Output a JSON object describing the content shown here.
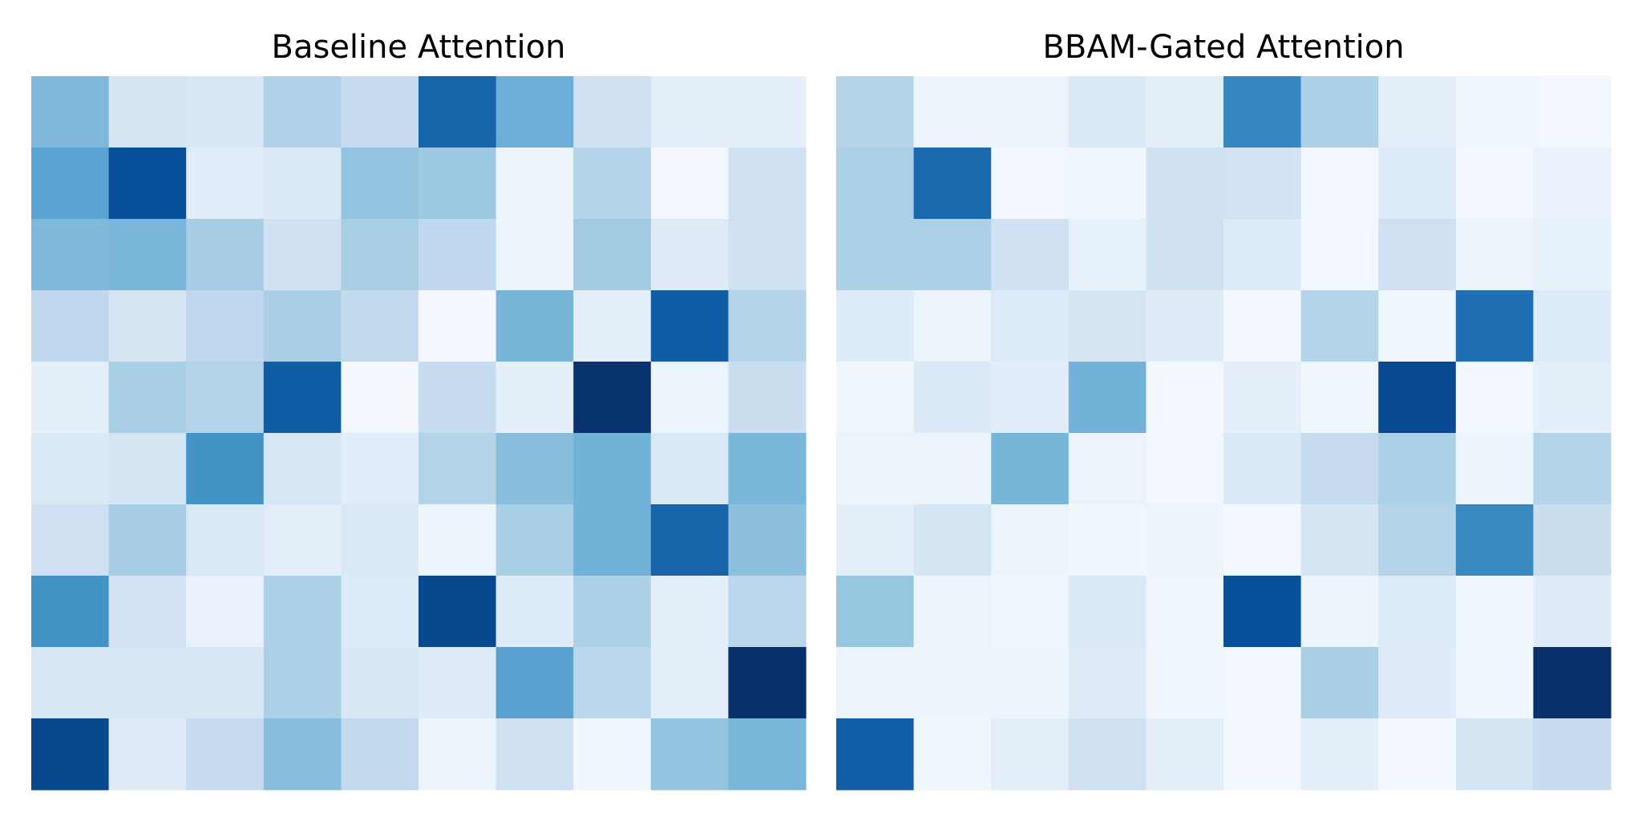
{
  "chart_data": [
    {
      "type": "heatmap",
      "title": "Baseline Attention",
      "xlabel": "",
      "ylabel": "",
      "colormap": "Blues",
      "vmin": 0,
      "vmax": 1,
      "grid": false,
      "values": [
        [
          0.45,
          0.18,
          0.16,
          0.32,
          0.24,
          0.8,
          0.5,
          0.21,
          0.1,
          0.09
        ],
        [
          0.55,
          0.88,
          0.11,
          0.14,
          0.4,
          0.38,
          0.06,
          0.3,
          0.03,
          0.2
        ],
        [
          0.45,
          0.46,
          0.35,
          0.2,
          0.34,
          0.27,
          0.05,
          0.37,
          0.12,
          0.2
        ],
        [
          0.27,
          0.17,
          0.27,
          0.34,
          0.26,
          0.02,
          0.47,
          0.1,
          0.83,
          0.3
        ],
        [
          0.09,
          0.34,
          0.3,
          0.83,
          0.03,
          0.24,
          0.09,
          0.99,
          0.06,
          0.23
        ],
        [
          0.14,
          0.18,
          0.62,
          0.16,
          0.11,
          0.31,
          0.43,
          0.48,
          0.15,
          0.46
        ],
        [
          0.21,
          0.35,
          0.15,
          0.1,
          0.14,
          0.05,
          0.34,
          0.48,
          0.8,
          0.42
        ],
        [
          0.62,
          0.19,
          0.07,
          0.33,
          0.13,
          0.91,
          0.13,
          0.33,
          0.1,
          0.29
        ],
        [
          0.16,
          0.16,
          0.16,
          0.33,
          0.16,
          0.12,
          0.56,
          0.29,
          0.1,
          1.0
        ],
        [
          0.91,
          0.12,
          0.24,
          0.43,
          0.26,
          0.06,
          0.21,
          0.04,
          0.4,
          0.46
        ]
      ]
    },
    {
      "type": "heatmap",
      "title": "BBAM-Gated Attention",
      "xlabel": "",
      "ylabel": "",
      "colormap": "Blues",
      "vmin": 0,
      "vmax": 1,
      "grid": false,
      "values": [
        [
          0.3,
          0.05,
          0.06,
          0.14,
          0.1,
          0.67,
          0.33,
          0.09,
          0.04,
          0.03
        ],
        [
          0.33,
          0.78,
          0.03,
          0.04,
          0.2,
          0.19,
          0.03,
          0.13,
          0.02,
          0.07
        ],
        [
          0.33,
          0.33,
          0.2,
          0.08,
          0.2,
          0.13,
          0.03,
          0.21,
          0.05,
          0.08
        ],
        [
          0.13,
          0.06,
          0.13,
          0.17,
          0.12,
          0.02,
          0.3,
          0.04,
          0.76,
          0.13
        ],
        [
          0.04,
          0.14,
          0.11,
          0.48,
          0.02,
          0.09,
          0.04,
          0.9,
          0.03,
          0.09
        ],
        [
          0.06,
          0.06,
          0.47,
          0.06,
          0.03,
          0.14,
          0.25,
          0.33,
          0.06,
          0.3
        ],
        [
          0.1,
          0.18,
          0.06,
          0.04,
          0.05,
          0.02,
          0.17,
          0.3,
          0.66,
          0.23
        ],
        [
          0.39,
          0.06,
          0.04,
          0.14,
          0.04,
          0.88,
          0.05,
          0.13,
          0.04,
          0.12
        ],
        [
          0.06,
          0.05,
          0.05,
          0.12,
          0.04,
          0.03,
          0.34,
          0.12,
          0.04,
          1.0
        ],
        [
          0.82,
          0.04,
          0.1,
          0.2,
          0.1,
          0.02,
          0.09,
          0.02,
          0.18,
          0.24
        ]
      ]
    }
  ]
}
